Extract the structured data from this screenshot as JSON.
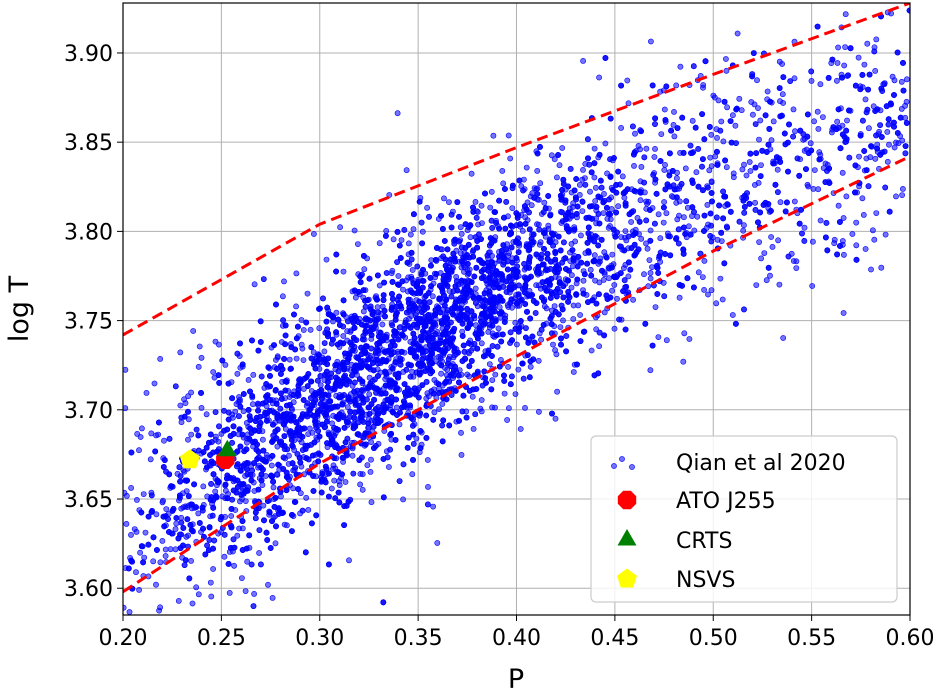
{
  "chart_data": {
    "type": "scatter",
    "xlabel": "P",
    "ylabel": "log T",
    "xlim": [
      0.2,
      0.6
    ],
    "ylim": [
      3.585,
      3.928
    ],
    "xticks": [
      "0.20",
      "0.25",
      "0.30",
      "0.35",
      "0.40",
      "0.45",
      "0.50",
      "0.55",
      "0.60"
    ],
    "yticks": [
      "3.60",
      "3.65",
      "3.70",
      "3.75",
      "3.80",
      "3.85",
      "3.90"
    ],
    "grid": true,
    "legend_position": "lower-right",
    "legend": [
      "Qian et al 2020",
      "ATO J255",
      "CRTS",
      "NSVS"
    ],
    "background_sample": {
      "name": "Qian et al 2020",
      "color": "#0000ff",
      "marker": "circle",
      "approx_count": 9000,
      "trend": "log T rises with P, dense core between P 0.27-0.45 and log T 3.70-3.81"
    },
    "series": [
      {
        "name": "ATO J255",
        "color": "#ff0000",
        "marker": "octagon",
        "x": [
          0.252
        ],
        "y": [
          3.672
        ]
      },
      {
        "name": "CRTS",
        "color": "#008000",
        "marker": "triangle",
        "x": [
          0.253
        ],
        "y": [
          3.677
        ]
      },
      {
        "name": "NSVS",
        "color": "#ffff00",
        "marker": "pentagon",
        "x": [
          0.234
        ],
        "y": [
          3.672
        ]
      }
    ],
    "boundary_lines": {
      "color": "#ff0000",
      "style": "dashed",
      "upper": {
        "x": [
          0.2,
          0.3,
          0.4,
          0.5,
          0.6
        ],
        "y": [
          3.742,
          3.804,
          3.847,
          3.888,
          3.928
        ]
      },
      "lower": {
        "x": [
          0.2,
          0.3,
          0.4,
          0.5,
          0.6
        ],
        "y": [
          3.598,
          3.67,
          3.73,
          3.789,
          3.842
        ]
      }
    }
  }
}
